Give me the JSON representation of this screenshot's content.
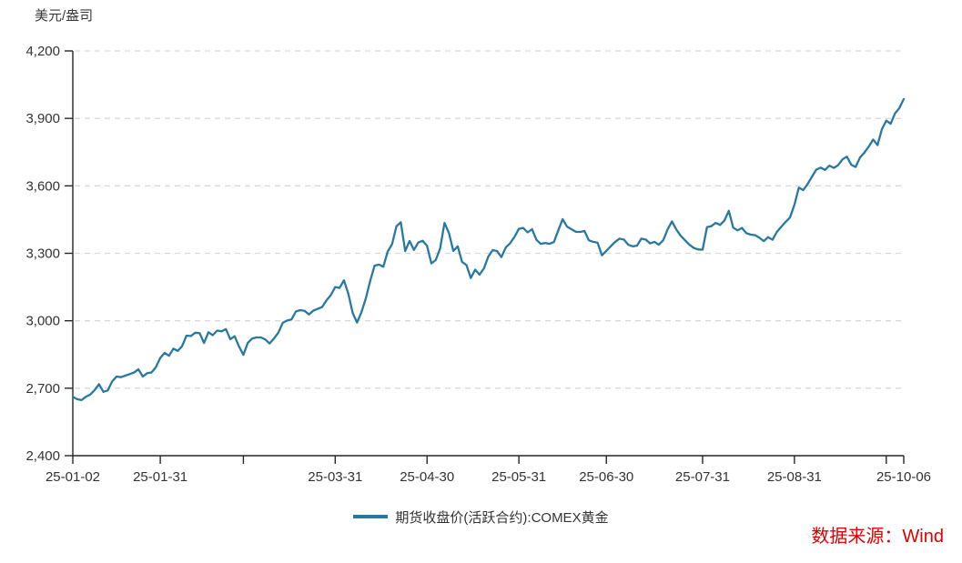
{
  "unit_label": "美元/盎司",
  "source_note": "数据来源：Wind",
  "legend": {
    "label": "期货收盘价(活跃合约):COMEX黄金"
  },
  "colors": {
    "series": "#2878a2",
    "axis": "#262626",
    "tick_label": "#333333",
    "grid": "#d9d9d9",
    "source_red": "#e00000"
  },
  "chart_data": {
    "type": "line",
    "title": "",
    "ylabel": "美元/盎司",
    "xlabel": "",
    "ylim": [
      2400,
      4200
    ],
    "y_ticks": [
      2400,
      2700,
      3000,
      3300,
      3600,
      3900,
      4200
    ],
    "grid": "horizontal-dashed",
    "legend_position": "bottom-center",
    "x_ticks": [
      {
        "date": "25-01-02",
        "label": "25-01-02"
      },
      {
        "date": "25-01-31",
        "label": "25-01-31"
      },
      {
        "date": "25-02-28",
        "label": ""
      },
      {
        "date": "25-03-31",
        "label": "25-03-31"
      },
      {
        "date": "25-04-30",
        "label": "25-04-30"
      },
      {
        "date": "25-05-30",
        "label": "25-05-31"
      },
      {
        "date": "25-06-30",
        "label": "25-06-30"
      },
      {
        "date": "25-07-31",
        "label": "25-07-31"
      },
      {
        "date": "25-08-29",
        "label": "25-08-31"
      },
      {
        "date": "25-09-30",
        "label": ""
      },
      {
        "date": "25-10-06",
        "label": "25-10-06"
      }
    ],
    "series": [
      {
        "name": "期货收盘价(活跃合约):COMEX黄金",
        "color": "#2878a2",
        "x": [
          "25-01-02",
          "25-01-03",
          "25-01-06",
          "25-01-07",
          "25-01-08",
          "25-01-09",
          "25-01-10",
          "25-01-13",
          "25-01-14",
          "25-01-15",
          "25-01-16",
          "25-01-17",
          "25-01-21",
          "25-01-22",
          "25-01-23",
          "25-01-24",
          "25-01-27",
          "25-01-28",
          "25-01-29",
          "25-01-30",
          "25-01-31",
          "25-02-03",
          "25-02-04",
          "25-02-05",
          "25-02-06",
          "25-02-07",
          "25-02-10",
          "25-02-11",
          "25-02-12",
          "25-02-13",
          "25-02-14",
          "25-02-18",
          "25-02-19",
          "25-02-20",
          "25-02-21",
          "25-02-24",
          "25-02-25",
          "25-02-26",
          "25-02-27",
          "25-02-28",
          "25-03-03",
          "25-03-04",
          "25-03-05",
          "25-03-06",
          "25-03-07",
          "25-03-10",
          "25-03-11",
          "25-03-12",
          "25-03-13",
          "25-03-14",
          "25-03-17",
          "25-03-18",
          "25-03-19",
          "25-03-20",
          "25-03-21",
          "25-03-24",
          "25-03-25",
          "25-03-26",
          "25-03-27",
          "25-03-28",
          "25-03-31",
          "25-04-01",
          "25-04-02",
          "25-04-03",
          "25-04-04",
          "25-04-07",
          "25-04-08",
          "25-04-09",
          "25-04-10",
          "25-04-11",
          "25-04-14",
          "25-04-15",
          "25-04-16",
          "25-04-17",
          "25-04-21",
          "25-04-22",
          "25-04-23",
          "25-04-24",
          "25-04-25",
          "25-04-28",
          "25-04-29",
          "25-04-30",
          "25-05-01",
          "25-05-02",
          "25-05-05",
          "25-05-06",
          "25-05-07",
          "25-05-08",
          "25-05-09",
          "25-05-12",
          "25-05-13",
          "25-05-14",
          "25-05-15",
          "25-05-16",
          "25-05-19",
          "25-05-20",
          "25-05-21",
          "25-05-22",
          "25-05-23",
          "25-05-27",
          "25-05-28",
          "25-05-29",
          "25-05-30",
          "25-06-02",
          "25-06-03",
          "25-06-04",
          "25-06-05",
          "25-06-06",
          "25-06-09",
          "25-06-10",
          "25-06-11",
          "25-06-12",
          "25-06-13",
          "25-06-16",
          "25-06-17",
          "25-06-18",
          "25-06-20",
          "25-06-23",
          "25-06-24",
          "25-06-25",
          "25-06-26",
          "25-06-27",
          "25-06-30",
          "25-07-01",
          "25-07-02",
          "25-07-03",
          "25-07-07",
          "25-07-08",
          "25-07-09",
          "25-07-10",
          "25-07-11",
          "25-07-14",
          "25-07-15",
          "25-07-16",
          "25-07-17",
          "25-07-18",
          "25-07-21",
          "25-07-22",
          "25-07-23",
          "25-07-24",
          "25-07-25",
          "25-07-28",
          "25-07-29",
          "25-07-30",
          "25-07-31",
          "25-08-01",
          "25-08-04",
          "25-08-05",
          "25-08-06",
          "25-08-07",
          "25-08-08",
          "25-08-11",
          "25-08-12",
          "25-08-13",
          "25-08-14",
          "25-08-15",
          "25-08-18",
          "25-08-19",
          "25-08-20",
          "25-08-21",
          "25-08-22",
          "25-08-25",
          "25-08-26",
          "25-08-27",
          "25-08-28",
          "25-08-29",
          "25-09-02",
          "25-09-03",
          "25-09-04",
          "25-09-05",
          "25-09-08",
          "25-09-09",
          "25-09-10",
          "25-09-11",
          "25-09-12",
          "25-09-15",
          "25-09-16",
          "25-09-17",
          "25-09-18",
          "25-09-19",
          "25-09-22",
          "25-09-23",
          "25-09-24",
          "25-09-25",
          "25-09-26",
          "25-09-29",
          "25-09-30",
          "25-10-01",
          "25-10-02",
          "25-10-03",
          "25-10-06"
        ],
        "values": [
          2662,
          2651,
          2647,
          2662,
          2672,
          2692,
          2718,
          2684,
          2690,
          2730,
          2752,
          2749,
          2756,
          2763,
          2770,
          2784,
          2752,
          2767,
          2770,
          2794,
          2835,
          2857,
          2844,
          2876,
          2866,
          2887,
          2934,
          2932,
          2947,
          2945,
          2901,
          2949,
          2936,
          2956,
          2953,
          2963,
          2918,
          2931,
          2886,
          2848,
          2901,
          2921,
          2926,
          2926,
          2917,
          2899,
          2921,
          2947,
          2991,
          3001,
          3006,
          3041,
          3047,
          3044,
          3028,
          3045,
          3053,
          3061,
          3091,
          3114,
          3150,
          3146,
          3180,
          3121,
          3035,
          2992,
          3038,
          3100,
          3178,
          3245,
          3250,
          3240,
          3308,
          3341,
          3420,
          3438,
          3310,
          3355,
          3315,
          3348,
          3356,
          3333,
          3255,
          3270,
          3322,
          3435,
          3390,
          3310,
          3331,
          3262,
          3248,
          3190,
          3227,
          3205,
          3233,
          3285,
          3314,
          3310,
          3283,
          3326,
          3345,
          3373,
          3409,
          3413,
          3393,
          3407,
          3360,
          3342,
          3346,
          3342,
          3350,
          3402,
          3452,
          3419,
          3407,
          3396,
          3395,
          3399,
          3358,
          3351,
          3347,
          3291,
          3311,
          3331,
          3351,
          3365,
          3361,
          3338,
          3331,
          3334,
          3365,
          3361,
          3344,
          3351,
          3338,
          3358,
          3406,
          3442,
          3406,
          3378,
          3358,
          3338,
          3324,
          3317,
          3316,
          3416,
          3421,
          3435,
          3426,
          3446,
          3489,
          3414,
          3402,
          3413,
          3390,
          3383,
          3381,
          3369,
          3354,
          3372,
          3360,
          3395,
          3418,
          3440,
          3460,
          3516,
          3592,
          3581,
          3608,
          3640,
          3672,
          3681,
          3671,
          3690,
          3680,
          3692,
          3718,
          3730,
          3694,
          3684,
          3726,
          3748,
          3775,
          3806,
          3781,
          3852,
          3890,
          3876,
          3922,
          3946,
          3986
        ]
      }
    ]
  }
}
